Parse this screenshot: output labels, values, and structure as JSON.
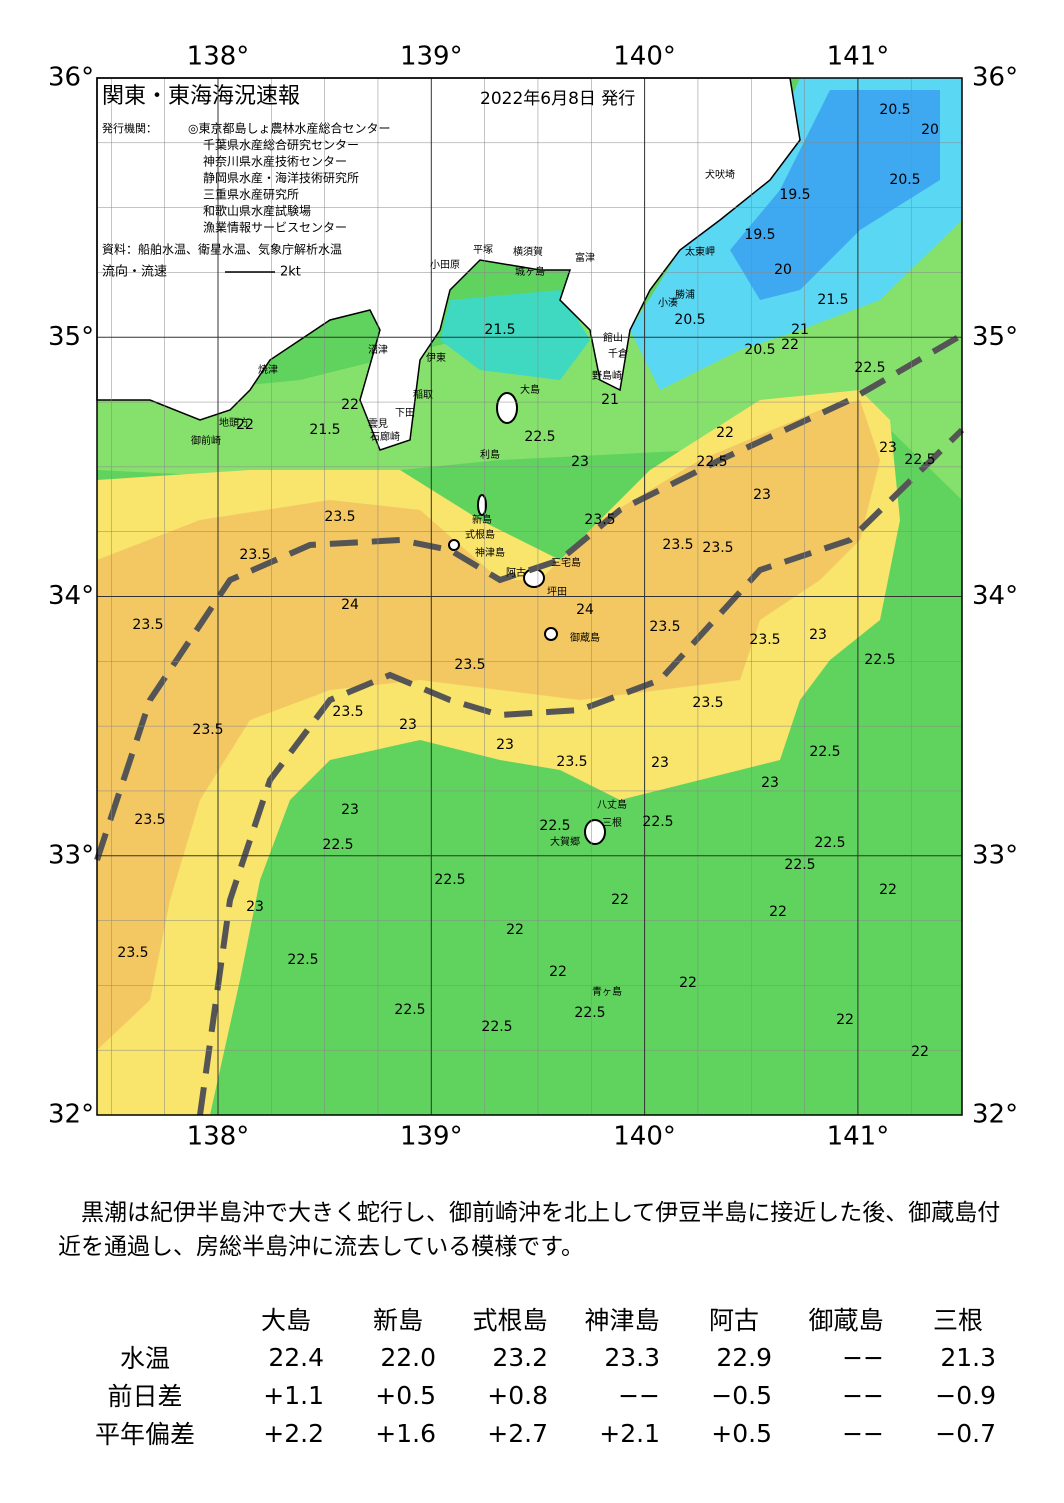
{
  "header": {
    "title": "関東・東海海況速報",
    "date": "2022年6月8日 発行",
    "issuer_label": "発行機関：",
    "issuers": [
      "◎東京都島しょ農林水産総合センター",
      "千葉県水産総合研究センター",
      "神奈川県水産技術センター",
      "静岡県水産・海洋技術研究所",
      "三重県水産研究所",
      "和歌山県水産試験場",
      "漁業情報サービスセンター"
    ],
    "source": "資料：船舶水温、衛星水温、気象庁解析水温",
    "flow_label": "流向・流速",
    "flow_scale": "2kt"
  },
  "map": {
    "longitudes": [
      {
        "value": 138,
        "label": "138°"
      },
      {
        "value": 139,
        "label": "139°"
      },
      {
        "value": 140,
        "label": "140°"
      },
      {
        "value": 141,
        "label": "141°"
      }
    ],
    "latitudes": [
      {
        "value": 36,
        "label": "36°"
      },
      {
        "value": 35,
        "label": "35°"
      },
      {
        "value": 34,
        "label": "34°"
      },
      {
        "value": 33,
        "label": "33°"
      },
      {
        "value": 32,
        "label": "32°"
      }
    ],
    "place_names": [
      "大島",
      "利島",
      "新島",
      "式根島",
      "神津島",
      "三宅島",
      "阿古",
      "坪田",
      "御蔵島",
      "八丈島",
      "三根",
      "大賀郷",
      "青ヶ島",
      "小田原",
      "平塚",
      "横須賀",
      "城ヶ島",
      "富津",
      "館山",
      "千倉",
      "野島崎",
      "小湊",
      "勝浦",
      "太東岬",
      "犬吠埼",
      "伊東",
      "稲取",
      "下田",
      "石廊崎",
      "雲見",
      "沼津",
      "焼津",
      "地頭方",
      "御前崎"
    ],
    "contour_labels": [
      "20.5",
      "20",
      "20.5",
      "19.5",
      "19.5",
      "20",
      "21",
      "21.5",
      "20.5",
      "22",
      "20.5",
      "22.5",
      "21",
      "21.5",
      "22",
      "21.5",
      "22",
      "22",
      "22.5",
      "23",
      "22.5",
      "23",
      "23",
      "22.5",
      "23.5",
      "23.5",
      "23.5",
      "23.5",
      "23.5",
      "24",
      "24",
      "23.5",
      "23.5",
      "23.5",
      "23",
      "23.5",
      "22.5",
      "23.5",
      "23.5",
      "23",
      "23.5",
      "23",
      "23.5",
      "23",
      "22.5",
      "23",
      "23",
      "23.5",
      "22.5",
      "22.5",
      "22.5",
      "22.5",
      "22.5",
      "22.5",
      "22",
      "23",
      "22",
      "22",
      "22",
      "23.5",
      "22.5",
      "22",
      "22",
      "22.5",
      "22.5",
      "22.5",
      "22",
      "22"
    ]
  },
  "description": "黒潮は紀伊半島沖で大きく蛇行し、御前崎沖を北上して伊豆半島に接近した後、御蔵島付近を通過し、房総半島沖に流去している模様です。",
  "table": {
    "columns": [
      "大島",
      "新島",
      "式根島",
      "神津島",
      "阿古",
      "御蔵島",
      "三根"
    ],
    "rows": [
      {
        "label": "水温",
        "values": [
          "22.4",
          "22.0",
          "23.2",
          "23.3",
          "22.9",
          "−−",
          "21.3"
        ]
      },
      {
        "label": "前日差",
        "values": [
          "+1.1",
          "+0.5",
          "+0.8",
          "−−",
          "−0.5",
          "−−",
          "−0.9"
        ]
      },
      {
        "label": "平年偏差",
        "values": [
          "+2.2",
          "+1.6",
          "+2.7",
          "+2.1",
          "+0.5",
          "−−",
          "−0.7"
        ]
      }
    ]
  }
}
